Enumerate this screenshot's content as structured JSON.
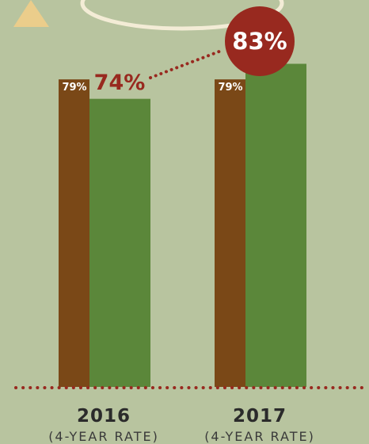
{
  "chart_data": {
    "type": "bar",
    "categories": [
      "2016",
      "2017"
    ],
    "category_subtitles": [
      "(4-YEAR RATE)",
      "(4-YEAR RATE)"
    ],
    "series": [
      {
        "values": [
          79,
          79
        ],
        "labels": [
          "79%",
          "79%"
        ],
        "color": "#7a4817"
      },
      {
        "values": [
          74,
          83
        ],
        "labels": [
          "74%",
          "83%"
        ],
        "color": "#5b873a"
      }
    ],
    "ylim": [
      0,
      100
    ],
    "grid": false,
    "highlight_color": "#98291f",
    "baseline_style": "dotted"
  }
}
